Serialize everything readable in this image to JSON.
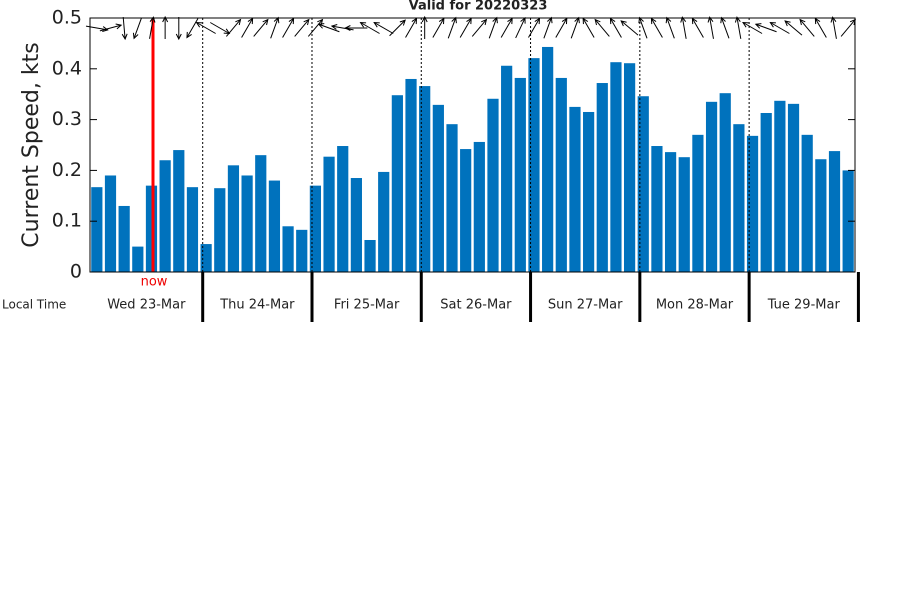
{
  "chart_data": {
    "type": "bar",
    "title": "Valid for 20220323",
    "y_label": "Current Speed, kts",
    "x_label": "Local Time",
    "now_label": "now",
    "color": "#0072BD",
    "days": [
      "Wed 23-Mar",
      "Thu 24-Mar",
      "Fri 25-Mar",
      "Sat 26-Mar",
      "Sun 27-Mar",
      "Mon 28-Mar",
      "Tue 29-Mar"
    ],
    "values": [
      0.167,
      0.19,
      0.13,
      0.05,
      0.17,
      0.22,
      0.24,
      0.167,
      0.055,
      0.165,
      0.21,
      0.19,
      0.23,
      0.18,
      0.09,
      0.083,
      0.17,
      0.227,
      0.248,
      0.185,
      0.063,
      0.197,
      0.348,
      0.38,
      0.366,
      0.329,
      0.291,
      0.242,
      0.256,
      0.341,
      0.406,
      0.382,
      0.421,
      0.443,
      0.382,
      0.325,
      0.315,
      0.372,
      0.413,
      0.411,
      0.346,
      0.248,
      0.236,
      0.226,
      0.27,
      0.335,
      0.352,
      0.291,
      0.268,
      0.313,
      0.337,
      0.331,
      0.27,
      0.222,
      0.238,
      0.2
    ],
    "directions": [
      100,
      75,
      175,
      200,
      10,
      0,
      180,
      210,
      300,
      120,
      40,
      30,
      40,
      20,
      30,
      40,
      40,
      290,
      280,
      270,
      300,
      300,
      45,
      30,
      0,
      30,
      20,
      30,
      40,
      20,
      30,
      25,
      30,
      20,
      30,
      20,
      330,
      320,
      330,
      310,
      340,
      330,
      340,
      350,
      330,
      350,
      340,
      350,
      300,
      290,
      300,
      310,
      320,
      330,
      350,
      40
    ],
    "ylim": [
      0,
      0.5
    ],
    "yticks": [
      0,
      0.1,
      0.2,
      0.3,
      0.4,
      0.5
    ]
  }
}
